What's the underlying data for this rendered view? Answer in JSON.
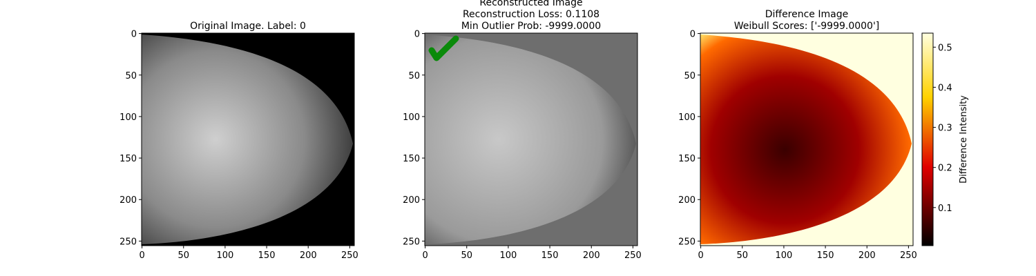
{
  "chart_data": [
    {
      "type": "image",
      "title": [
        "Original Image. Label: 0"
      ],
      "xlim": [
        -0.5,
        255.5
      ],
      "ylim": [
        255.5,
        -0.5
      ],
      "xticks": [
        0,
        50,
        100,
        150,
        200,
        250
      ],
      "yticks": [
        0,
        50,
        100,
        150,
        200,
        250
      ]
    },
    {
      "type": "image",
      "title": [
        "Reconstructed Image",
        "Reconstruction Loss: 0.1108",
        "Min Outlier Prob: -9999.0000"
      ],
      "xlim": [
        -0.5,
        255.5
      ],
      "ylim": [
        255.5,
        -0.5
      ],
      "xticks": [
        0,
        50,
        100,
        150,
        200,
        250
      ],
      "yticks": [
        0,
        50,
        100,
        150,
        200,
        250
      ]
    },
    {
      "type": "image",
      "title": [
        "Difference Image",
        "Weibull Scores: ['-9999.0000']"
      ],
      "xlim": [
        -0.5,
        255.5
      ],
      "ylim": [
        255.5,
        -0.5
      ],
      "xticks": [
        0,
        50,
        100,
        150,
        200,
        250
      ],
      "yticks": [
        0,
        50,
        100,
        150,
        200,
        250
      ],
      "colorbar": {
        "label": "Difference Intensity",
        "ylim": [
          0.005,
          0.535
        ],
        "yticks": [
          0.1,
          0.2,
          0.3,
          0.4,
          0.5
        ]
      }
    }
  ]
}
